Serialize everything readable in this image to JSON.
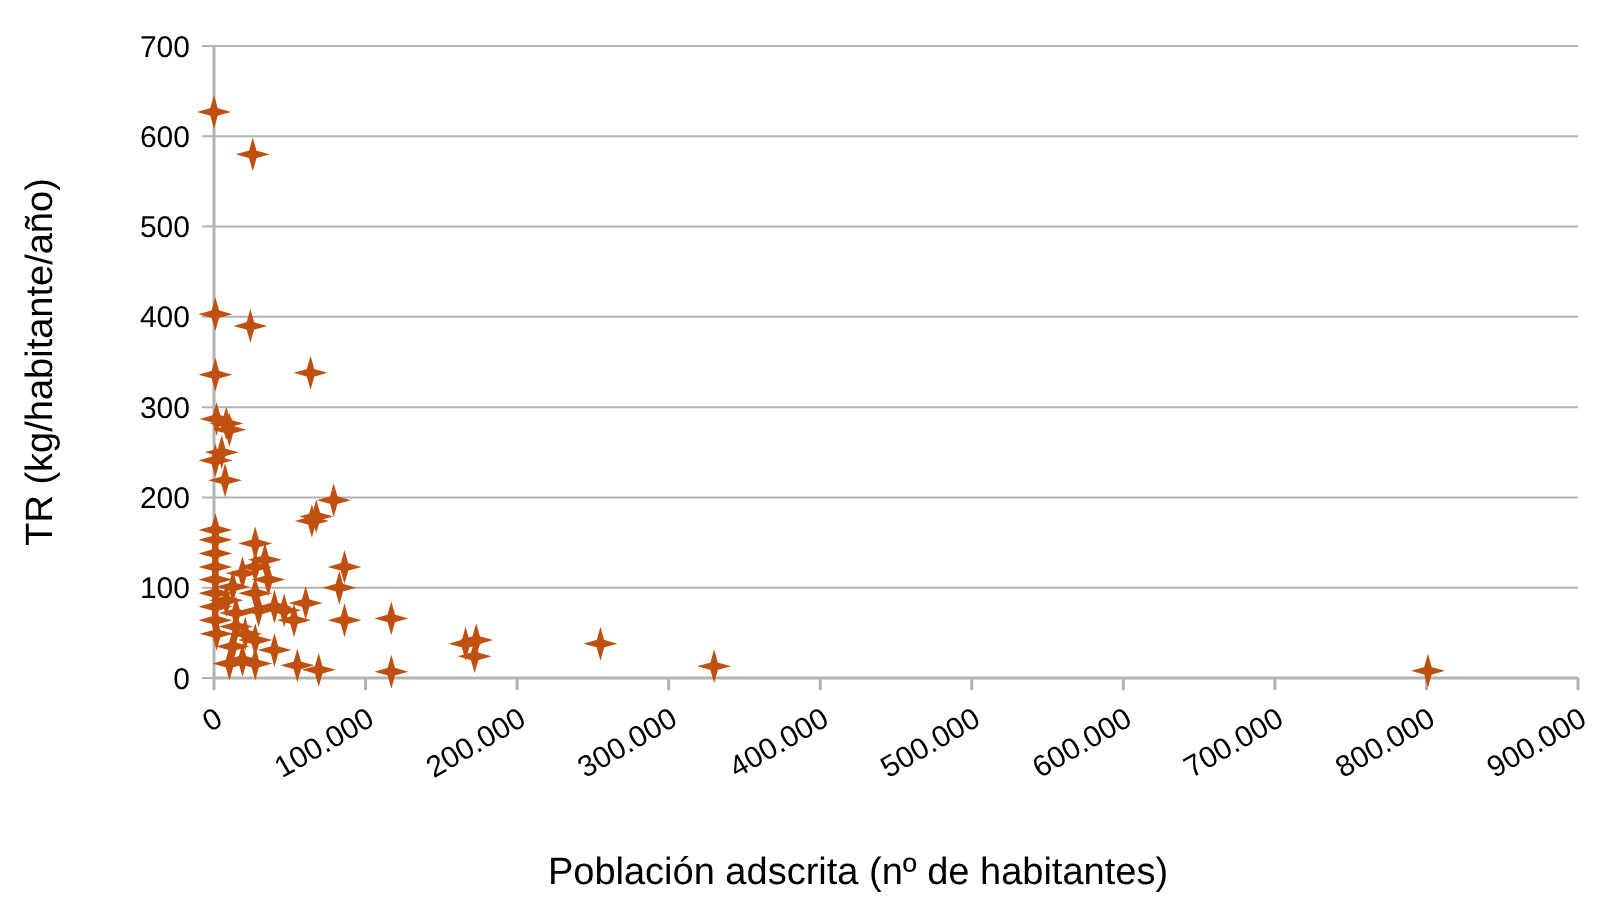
{
  "chart_data": {
    "type": "scatter",
    "xlabel": "Población adscrita (nº de habitantes)",
    "ylabel": "TR (kg/habitante/año)",
    "x": [
      0,
      25600,
      900,
      24000,
      900,
      63700,
      1700,
      8100,
      10200,
      5100,
      900,
      7300,
      79000,
      67500,
      64600,
      900,
      900,
      900,
      900,
      27200,
      33600,
      27200,
      18800,
      35800,
      12400,
      86100,
      82700,
      900,
      900,
      900,
      900,
      8100,
      14500,
      27200,
      29400,
      39900,
      46300,
      52800,
      60500,
      86100,
      117000,
      117000,
      14500,
      1700,
      12400,
      18800,
      27200,
      39900,
      27200,
      55000,
      69100,
      20600,
      10200,
      166000,
      173000,
      172000,
      255000,
      330000,
      801000
    ],
    "values": [
      627,
      580,
      403,
      390,
      336,
      338,
      287,
      282,
      275,
      250,
      241,
      219,
      197,
      179,
      174,
      164,
      153,
      138,
      123,
      149,
      131,
      123,
      116,
      109,
      101,
      123,
      100,
      109,
      94,
      79,
      64,
      86,
      72,
      94,
      75,
      79,
      75,
      64,
      83,
      64,
      66,
      7,
      57,
      49,
      35,
      20,
      16,
      31,
      42,
      14,
      9,
      49,
      16,
      38,
      42,
      24,
      38,
      13,
      8
    ],
    "color": "#c0500f",
    "marker": "star",
    "xlim": [
      0,
      900000
    ],
    "xticks": [
      0,
      {
        "value": 100000,
        "label": "100.000"
      },
      {
        "value": 200000,
        "label": "200.000"
      },
      {
        "value": 300000,
        "label": "300.000"
      },
      {
        "value": 400000,
        "label": "400.000"
      },
      {
        "value": 500000,
        "label": "500.000"
      },
      {
        "value": 600000,
        "label": "600.000"
      },
      {
        "value": 700000,
        "label": "700.000"
      },
      {
        "value": 800000,
        "label": "800.000"
      },
      {
        "value": 900000,
        "label": "900.000"
      }
    ],
    "ylim": [
      0,
      700
    ],
    "yticks": [
      0,
      100,
      200,
      300,
      400,
      500,
      600,
      700
    ],
    "grid": "y"
  }
}
